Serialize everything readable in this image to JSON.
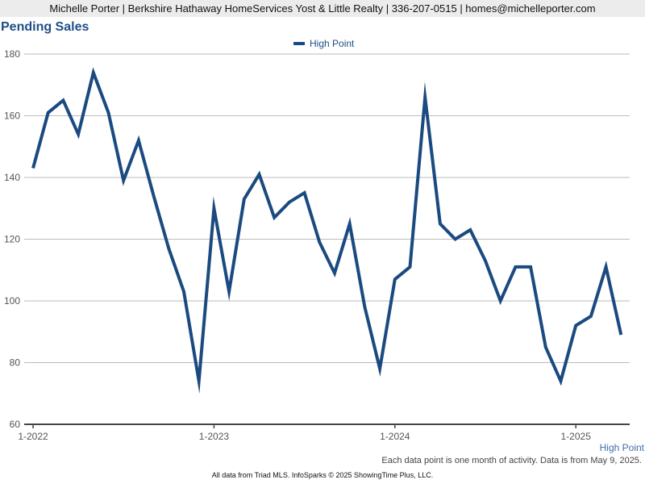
{
  "header": {
    "contact_line": "Michelle Porter | Berkshire Hathaway HomeServices Yost & Little Realty | 336-207-0515 | homes@michelleporter.com"
  },
  "chart_title": "Pending Sales",
  "series_label": "High Point",
  "footnote": "Each data point is one month of activity. Data is from May 9, 2025.",
  "credits": "All data from Triad MLS. InfoSparks © 2025 ShowingTime Plus, LLC.",
  "colors": {
    "series": "#1b4a80",
    "title": "#1f4e86",
    "grid": "#bbbbbb"
  },
  "chart_data": {
    "type": "line",
    "title": "Pending Sales",
    "xlabel": "",
    "ylabel": "",
    "ylim": [
      60,
      180
    ],
    "yticks": [
      "60",
      "80",
      "100",
      "120",
      "140",
      "160",
      "180"
    ],
    "xticks": [
      "1-2022",
      "1-2023",
      "1-2024",
      "1-2025"
    ],
    "grid": true,
    "legend_position": "top-center",
    "x": [
      "2022-01",
      "2022-02",
      "2022-03",
      "2022-04",
      "2022-05",
      "2022-06",
      "2022-07",
      "2022-08",
      "2022-09",
      "2022-10",
      "2022-11",
      "2022-12",
      "2023-01",
      "2023-02",
      "2023-03",
      "2023-04",
      "2023-05",
      "2023-06",
      "2023-07",
      "2023-08",
      "2023-09",
      "2023-10",
      "2023-11",
      "2023-12",
      "2024-01",
      "2024-02",
      "2024-03",
      "2024-04",
      "2024-05",
      "2024-06",
      "2024-07",
      "2024-08",
      "2024-09",
      "2024-10",
      "2024-11",
      "2024-12",
      "2025-01",
      "2025-02",
      "2025-03",
      "2025-04"
    ],
    "series": [
      {
        "name": "High Point",
        "values": [
          143,
          161,
          165,
          154,
          174,
          161,
          139,
          152,
          134,
          117,
          103,
          74,
          130,
          103,
          133,
          141,
          127,
          132,
          135,
          119,
          109,
          125,
          98,
          78,
          107,
          111,
          166,
          125,
          120,
          123,
          113,
          100,
          111,
          111,
          85,
          74,
          92,
          95,
          111,
          89
        ]
      }
    ]
  }
}
